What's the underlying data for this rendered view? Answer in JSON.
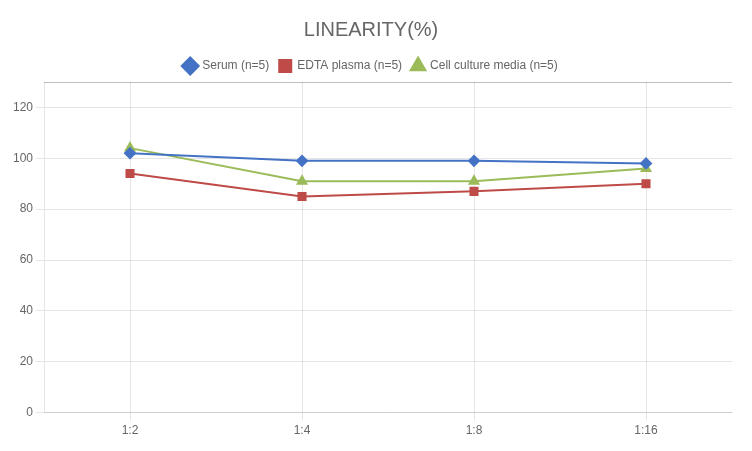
{
  "chart_data": {
    "type": "line",
    "title": "LINEARITY(%)",
    "categories": [
      "1:2",
      "1:4",
      "1:8",
      "1:16"
    ],
    "series": [
      {
        "name": "Serum (n=5)",
        "color": "#4472C4",
        "marker": "diamond",
        "values": [
          102,
          99,
          99,
          98
        ]
      },
      {
        "name": "EDTA plasma (n=5)",
        "color": "#BE4B48",
        "marker": "square",
        "values": [
          94,
          85,
          87,
          90
        ]
      },
      {
        "name": "Cell culture media (n=5)",
        "color": "#9BBB59",
        "marker": "triangle",
        "values": [
          104,
          91,
          91,
          96
        ]
      }
    ],
    "ylim": [
      0,
      130
    ],
    "yticks": [
      0,
      20,
      40,
      60,
      80,
      100,
      120
    ],
    "grid": true,
    "legend": "top"
  }
}
